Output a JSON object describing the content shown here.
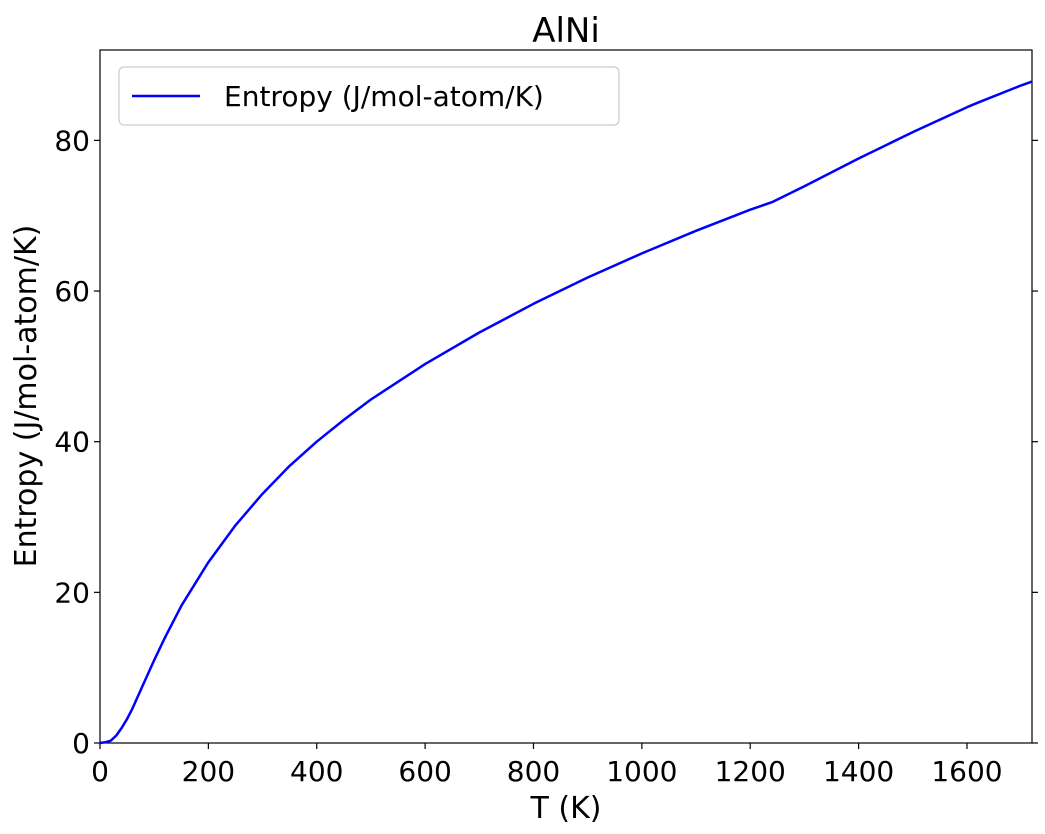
{
  "chart_data": {
    "type": "line",
    "title": "AlNi",
    "xlabel": "T (K)",
    "ylabel": "Entropy (J/mol-atom/K)",
    "xlim": [
      0,
      1720
    ],
    "ylim": [
      0,
      92
    ],
    "x_ticks": [
      0,
      200,
      400,
      600,
      800,
      1000,
      1200,
      1400,
      1600
    ],
    "y_ticks": [
      0,
      20,
      40,
      60,
      80
    ],
    "grid": false,
    "legend_position": "top-left",
    "series": [
      {
        "name": "Entropy (J/mol-atom/K)",
        "color": "#0000ff",
        "x": [
          0,
          10,
          20,
          30,
          40,
          50,
          60,
          80,
          100,
          120,
          150,
          200,
          250,
          300,
          350,
          400,
          450,
          500,
          600,
          700,
          800,
          900,
          1000,
          1100,
          1200,
          1240,
          1300,
          1400,
          1500,
          1600,
          1620,
          1700,
          1720
        ],
        "y": [
          0,
          0.1,
          0.3,
          1.0,
          2.0,
          3.2,
          4.6,
          7.8,
          11.0,
          14.0,
          18.2,
          24.0,
          28.9,
          33.1,
          36.8,
          40.0,
          42.9,
          45.6,
          50.3,
          54.5,
          58.3,
          61.8,
          65.0,
          68.0,
          70.8,
          71.8,
          73.9,
          77.6,
          81.1,
          84.4,
          85.0,
          87.3,
          87.8
        ]
      }
    ]
  }
}
